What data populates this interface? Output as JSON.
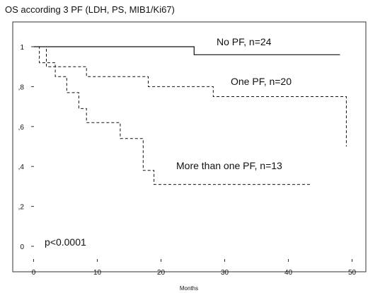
{
  "chart_data": {
    "type": "line",
    "title": "OS according 3 PF (LDH, PS, MIB1/Ki67)",
    "xlabel": "Months",
    "ylabel": "",
    "xlim": [
      0,
      50
    ],
    "ylim": [
      0,
      1.08
    ],
    "x_ticks": [
      0,
      10,
      20,
      30,
      40,
      50
    ],
    "x_tick_labels": [
      "0",
      "10",
      "20",
      "30",
      "40",
      "50"
    ],
    "y_ticks": [
      0,
      0.2,
      0.4,
      0.6,
      0.8,
      1.0
    ],
    "y_tick_labels": [
      "0",
      ",2",
      ",4",
      ",6",
      ",8",
      "1"
    ],
    "grid": false,
    "step": true,
    "series": [
      {
        "name": "No PF, n=24",
        "style": "solid",
        "x": [
          0,
          25.2,
          48.1
        ],
        "y": [
          1.0,
          0.96,
          0.96
        ]
      },
      {
        "name": "One PF, n=20",
        "style": "dashed",
        "x": [
          0,
          2.0,
          8.3,
          18.0,
          28.2,
          46.3,
          49.1
        ],
        "y": [
          1.0,
          0.9,
          0.85,
          0.8,
          0.75,
          0.75,
          0.5
        ]
      },
      {
        "name": "More than one PF, n=13",
        "style": "dashed",
        "x": [
          0,
          0.9,
          3.4,
          5.2,
          7.1,
          8.3,
          9.8,
          13.6,
          17.2,
          18.9,
          43.6
        ],
        "y": [
          1.0,
          0.92,
          0.85,
          0.77,
          0.69,
          0.62,
          0.62,
          0.54,
          0.38,
          0.31,
          0.31
        ]
      }
    ],
    "annotations": [
      "p<0.0001"
    ]
  }
}
